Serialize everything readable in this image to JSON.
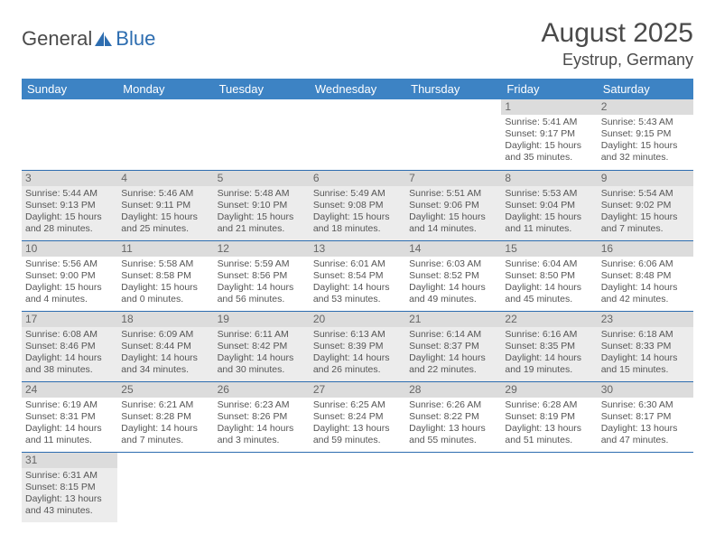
{
  "logo": {
    "part1": "General",
    "part2": "Blue"
  },
  "title": "August 2025",
  "location": "Eystrup, Germany",
  "weekdays": [
    "Sunday",
    "Monday",
    "Tuesday",
    "Wednesday",
    "Thursday",
    "Friday",
    "Saturday"
  ],
  "header_bg": "#3d83c4",
  "row_stripe_bg": "#ececec",
  "row_divider_color": "#2d6db0",
  "weeks": [
    [
      null,
      null,
      null,
      null,
      null,
      {
        "n": "1",
        "sr": "Sunrise: 5:41 AM",
        "ss": "Sunset: 9:17 PM",
        "d1": "Daylight: 15 hours",
        "d2": "and 35 minutes."
      },
      {
        "n": "2",
        "sr": "Sunrise: 5:43 AM",
        "ss": "Sunset: 9:15 PM",
        "d1": "Daylight: 15 hours",
        "d2": "and 32 minutes."
      }
    ],
    [
      {
        "n": "3",
        "sr": "Sunrise: 5:44 AM",
        "ss": "Sunset: 9:13 PM",
        "d1": "Daylight: 15 hours",
        "d2": "and 28 minutes."
      },
      {
        "n": "4",
        "sr": "Sunrise: 5:46 AM",
        "ss": "Sunset: 9:11 PM",
        "d1": "Daylight: 15 hours",
        "d2": "and 25 minutes."
      },
      {
        "n": "5",
        "sr": "Sunrise: 5:48 AM",
        "ss": "Sunset: 9:10 PM",
        "d1": "Daylight: 15 hours",
        "d2": "and 21 minutes."
      },
      {
        "n": "6",
        "sr": "Sunrise: 5:49 AM",
        "ss": "Sunset: 9:08 PM",
        "d1": "Daylight: 15 hours",
        "d2": "and 18 minutes."
      },
      {
        "n": "7",
        "sr": "Sunrise: 5:51 AM",
        "ss": "Sunset: 9:06 PM",
        "d1": "Daylight: 15 hours",
        "d2": "and 14 minutes."
      },
      {
        "n": "8",
        "sr": "Sunrise: 5:53 AM",
        "ss": "Sunset: 9:04 PM",
        "d1": "Daylight: 15 hours",
        "d2": "and 11 minutes."
      },
      {
        "n": "9",
        "sr": "Sunrise: 5:54 AM",
        "ss": "Sunset: 9:02 PM",
        "d1": "Daylight: 15 hours",
        "d2": "and 7 minutes."
      }
    ],
    [
      {
        "n": "10",
        "sr": "Sunrise: 5:56 AM",
        "ss": "Sunset: 9:00 PM",
        "d1": "Daylight: 15 hours",
        "d2": "and 4 minutes."
      },
      {
        "n": "11",
        "sr": "Sunrise: 5:58 AM",
        "ss": "Sunset: 8:58 PM",
        "d1": "Daylight: 15 hours",
        "d2": "and 0 minutes."
      },
      {
        "n": "12",
        "sr": "Sunrise: 5:59 AM",
        "ss": "Sunset: 8:56 PM",
        "d1": "Daylight: 14 hours",
        "d2": "and 56 minutes."
      },
      {
        "n": "13",
        "sr": "Sunrise: 6:01 AM",
        "ss": "Sunset: 8:54 PM",
        "d1": "Daylight: 14 hours",
        "d2": "and 53 minutes."
      },
      {
        "n": "14",
        "sr": "Sunrise: 6:03 AM",
        "ss": "Sunset: 8:52 PM",
        "d1": "Daylight: 14 hours",
        "d2": "and 49 minutes."
      },
      {
        "n": "15",
        "sr": "Sunrise: 6:04 AM",
        "ss": "Sunset: 8:50 PM",
        "d1": "Daylight: 14 hours",
        "d2": "and 45 minutes."
      },
      {
        "n": "16",
        "sr": "Sunrise: 6:06 AM",
        "ss": "Sunset: 8:48 PM",
        "d1": "Daylight: 14 hours",
        "d2": "and 42 minutes."
      }
    ],
    [
      {
        "n": "17",
        "sr": "Sunrise: 6:08 AM",
        "ss": "Sunset: 8:46 PM",
        "d1": "Daylight: 14 hours",
        "d2": "and 38 minutes."
      },
      {
        "n": "18",
        "sr": "Sunrise: 6:09 AM",
        "ss": "Sunset: 8:44 PM",
        "d1": "Daylight: 14 hours",
        "d2": "and 34 minutes."
      },
      {
        "n": "19",
        "sr": "Sunrise: 6:11 AM",
        "ss": "Sunset: 8:42 PM",
        "d1": "Daylight: 14 hours",
        "d2": "and 30 minutes."
      },
      {
        "n": "20",
        "sr": "Sunrise: 6:13 AM",
        "ss": "Sunset: 8:39 PM",
        "d1": "Daylight: 14 hours",
        "d2": "and 26 minutes."
      },
      {
        "n": "21",
        "sr": "Sunrise: 6:14 AM",
        "ss": "Sunset: 8:37 PM",
        "d1": "Daylight: 14 hours",
        "d2": "and 22 minutes."
      },
      {
        "n": "22",
        "sr": "Sunrise: 6:16 AM",
        "ss": "Sunset: 8:35 PM",
        "d1": "Daylight: 14 hours",
        "d2": "and 19 minutes."
      },
      {
        "n": "23",
        "sr": "Sunrise: 6:18 AM",
        "ss": "Sunset: 8:33 PM",
        "d1": "Daylight: 14 hours",
        "d2": "and 15 minutes."
      }
    ],
    [
      {
        "n": "24",
        "sr": "Sunrise: 6:19 AM",
        "ss": "Sunset: 8:31 PM",
        "d1": "Daylight: 14 hours",
        "d2": "and 11 minutes."
      },
      {
        "n": "25",
        "sr": "Sunrise: 6:21 AM",
        "ss": "Sunset: 8:28 PM",
        "d1": "Daylight: 14 hours",
        "d2": "and 7 minutes."
      },
      {
        "n": "26",
        "sr": "Sunrise: 6:23 AM",
        "ss": "Sunset: 8:26 PM",
        "d1": "Daylight: 14 hours",
        "d2": "and 3 minutes."
      },
      {
        "n": "27",
        "sr": "Sunrise: 6:25 AM",
        "ss": "Sunset: 8:24 PM",
        "d1": "Daylight: 13 hours",
        "d2": "and 59 minutes."
      },
      {
        "n": "28",
        "sr": "Sunrise: 6:26 AM",
        "ss": "Sunset: 8:22 PM",
        "d1": "Daylight: 13 hours",
        "d2": "and 55 minutes."
      },
      {
        "n": "29",
        "sr": "Sunrise: 6:28 AM",
        "ss": "Sunset: 8:19 PM",
        "d1": "Daylight: 13 hours",
        "d2": "and 51 minutes."
      },
      {
        "n": "30",
        "sr": "Sunrise: 6:30 AM",
        "ss": "Sunset: 8:17 PM",
        "d1": "Daylight: 13 hours",
        "d2": "and 47 minutes."
      }
    ],
    [
      {
        "n": "31",
        "sr": "Sunrise: 6:31 AM",
        "ss": "Sunset: 8:15 PM",
        "d1": "Daylight: 13 hours",
        "d2": "and 43 minutes."
      },
      null,
      null,
      null,
      null,
      null,
      null
    ]
  ]
}
